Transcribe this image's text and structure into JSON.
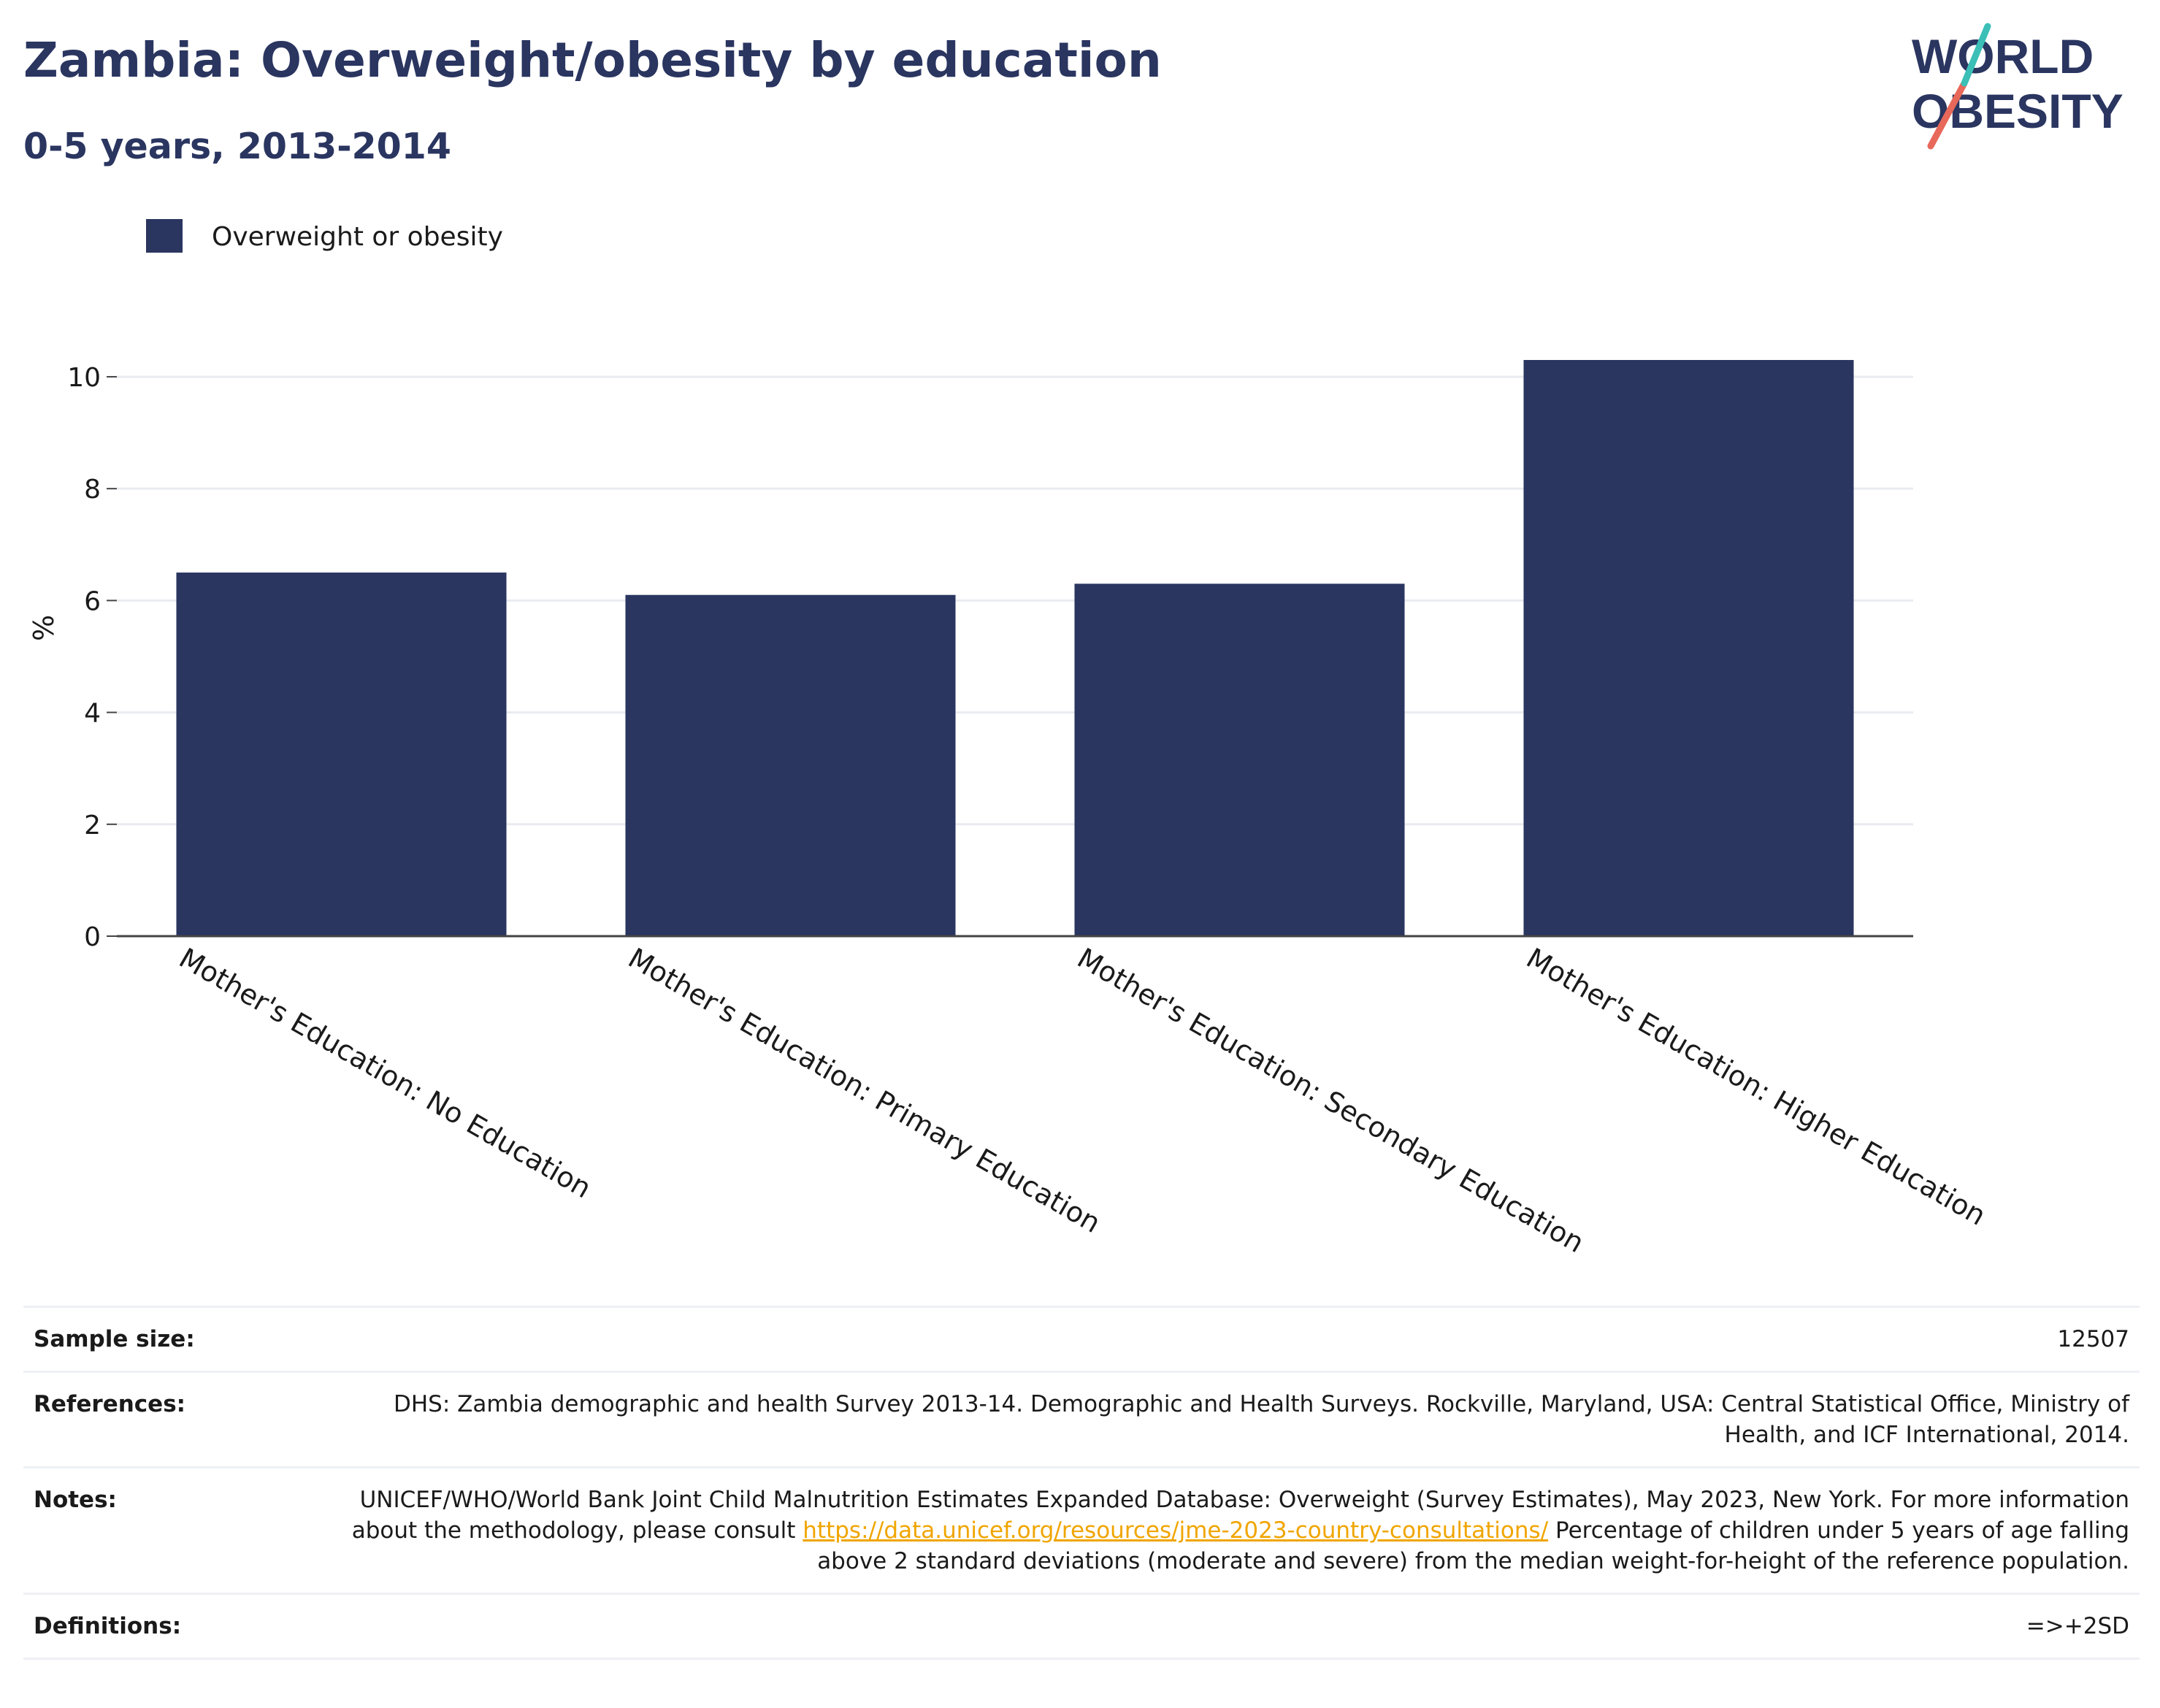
{
  "header": {
    "title": "Zambia: Overweight/obesity by education",
    "subtitle": "0-5 years, 2013-2014"
  },
  "logo": {
    "line1": "WORLD",
    "line2": "OBESITY",
    "colors": {
      "text": "#2a3560",
      "slash_red": "#e8685a",
      "slash_teal": "#3bbfb6"
    }
  },
  "chart_data": {
    "type": "bar",
    "categories": [
      "Mother's Education: No Education",
      "Mother's Education: Primary Education",
      "Mother's Education: Secondary Education",
      "Mother's Education: Higher Education"
    ],
    "series": [
      {
        "name": "Overweight or obesity",
        "values": [
          6.5,
          6.1,
          6.3,
          10.3
        ],
        "color": "#2a3560"
      }
    ],
    "title": "Zambia: Overweight/obesity by education",
    "subtitle": "0-5 years, 2013-2014",
    "xlabel": "",
    "ylabel": "%",
    "ylim": [
      0,
      10.6
    ],
    "yticks": [
      0,
      2,
      4,
      6,
      8,
      10
    ],
    "grid": true,
    "legend_placement": "top-left"
  },
  "info": {
    "sample_size": {
      "label": "Sample size:",
      "value": "12507"
    },
    "references": {
      "label": "References:",
      "value": "DHS: Zambia demographic and health Survey 2013-14. Demographic and Health Surveys. Rockville, Maryland, USA: Central Statistical Office, Ministry of Health, and ICF International, 2014."
    },
    "notes": {
      "label": "Notes:",
      "text_before": "UNICEF/WHO/World Bank Joint Child Malnutrition Estimates Expanded Database: Overweight (Survey Estimates), May 2023, New York. For more information about the methodology, please consult ",
      "link": "https://data.unicef.org/resources/jme-2023-country-consultations/",
      "text_after": " Percentage of children under 5 years of age falling above 2 standard deviations (moderate and severe) from the median weight-for-height of the reference population."
    },
    "definitions": {
      "label": "Definitions:",
      "value": "=>+2SD"
    }
  }
}
